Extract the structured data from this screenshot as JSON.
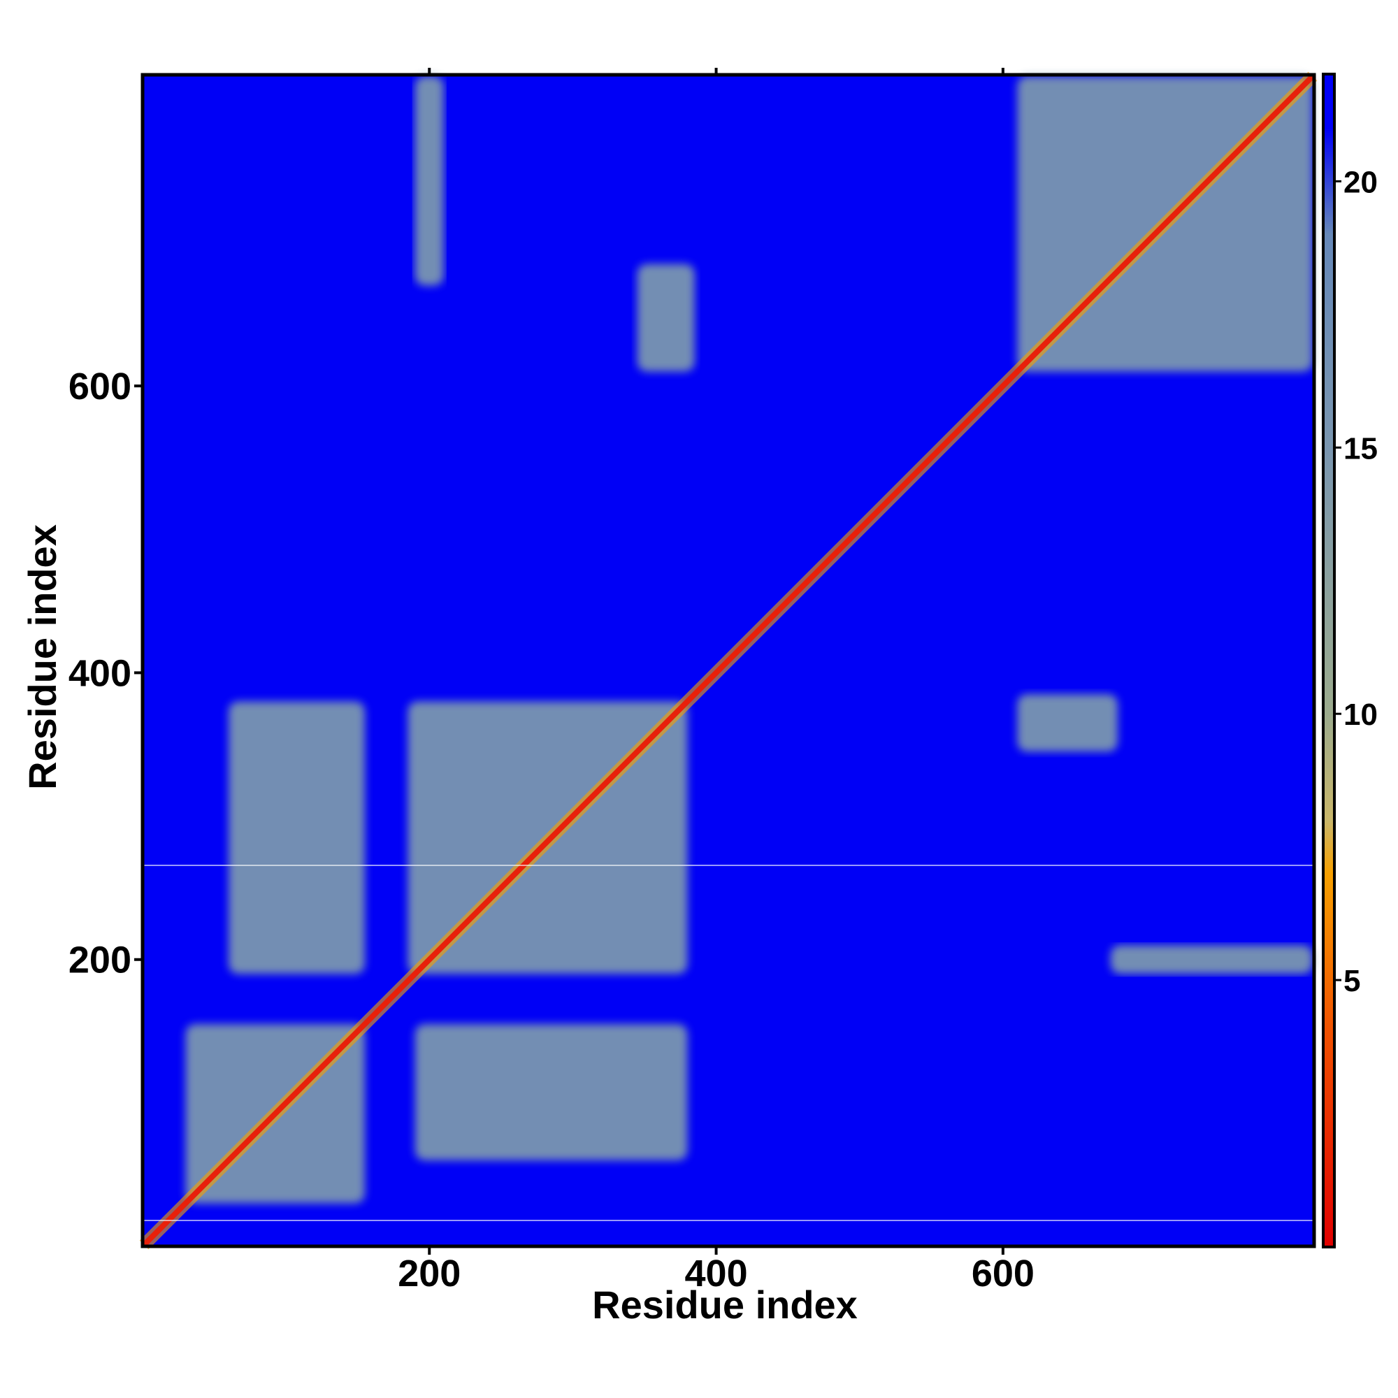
{
  "chart_data": {
    "type": "heatmap",
    "title": "",
    "xlabel": "Residue index",
    "ylabel": "Residue index",
    "xlim": [
      1,
      816
    ],
    "ylim": [
      1,
      816
    ],
    "x_ticks": [
      200,
      400,
      600
    ],
    "y_ticks": [
      200,
      400,
      600
    ],
    "x_tick_labels": [
      "200",
      "400",
      "600"
    ],
    "y_tick_labels": [
      "200",
      "400",
      "600"
    ],
    "grid": false,
    "colorbar": {
      "range": [
        0,
        22
      ],
      "ticks": [
        5,
        10,
        15,
        20
      ],
      "tick_labels": [
        "5",
        "10",
        "15",
        "20"
      ],
      "stops": [
        {
          "value": 0,
          "color": "#e00000"
        },
        {
          "value": 4,
          "color": "#f05000"
        },
        {
          "value": 7,
          "color": "#f7a000"
        },
        {
          "value": 8,
          "color": "#c9b66a"
        },
        {
          "value": 10,
          "color": "#9cab8d"
        },
        {
          "value": 15,
          "color": "#7a96b0"
        },
        {
          "value": 19,
          "color": "#6688b8"
        },
        {
          "value": 21,
          "color": "#0000f6"
        }
      ],
      "placement": "right"
    },
    "colors": {
      "background": "#0000f6",
      "contact": "#6a92bd",
      "diagonal": "#e8200a"
    },
    "contact_blocks": [
      {
        "x": [
          30,
          155
        ],
        "y": [
          30,
          155
        ],
        "value": 15
      },
      {
        "x": [
          185,
          380
        ],
        "y": [
          190,
          380
        ],
        "value": 15
      },
      {
        "x": [
          610,
          816
        ],
        "y": [
          610,
          816
        ],
        "value": 15
      },
      {
        "x": [
          190,
          210
        ],
        "y": [
          670,
          816
        ],
        "value": 17
      },
      {
        "x": [
          345,
          385
        ],
        "y": [
          610,
          685
        ],
        "value": 16
      },
      {
        "x": [
          610,
          680
        ],
        "y": [
          345,
          385
        ],
        "value": 16
      },
      {
        "x": [
          675,
          816
        ],
        "y": [
          190,
          210
        ],
        "value": 17
      },
      {
        "x": [
          60,
          155
        ],
        "y": [
          190,
          380
        ],
        "value": 18
      },
      {
        "x": [
          190,
          380
        ],
        "y": [
          60,
          155
        ],
        "value": 18
      }
    ]
  }
}
